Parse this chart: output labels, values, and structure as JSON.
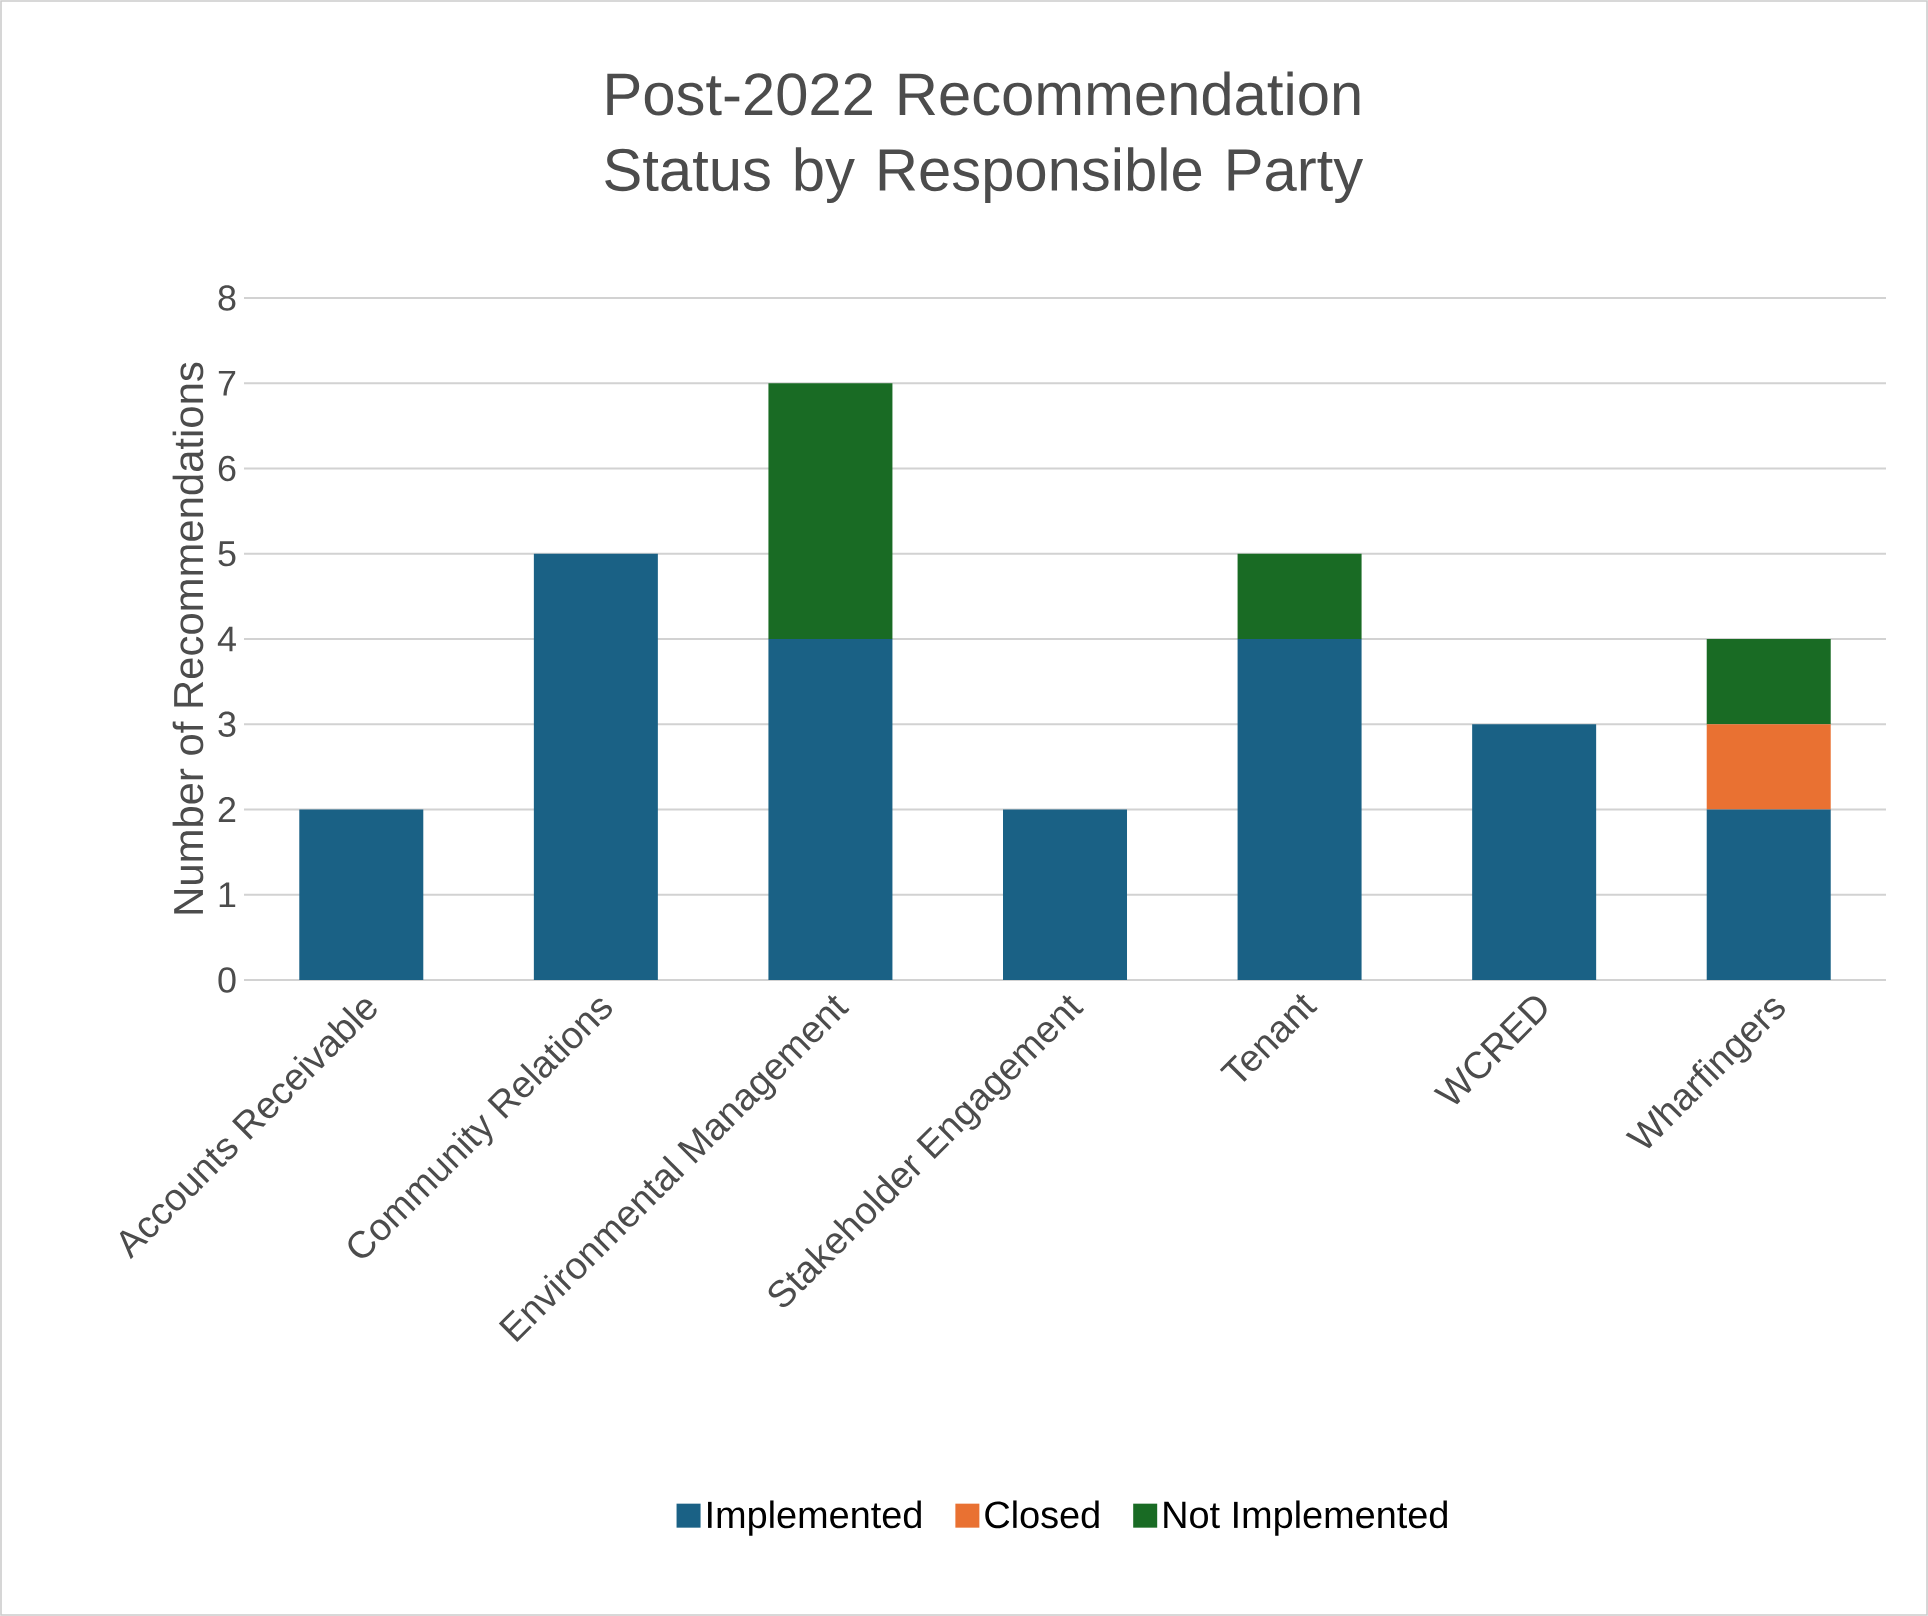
{
  "chart_data": {
    "type": "bar",
    "stacked": true,
    "title": "Post-2022 Recommendation Status by Responsible Party",
    "ylabel": "Number of Recommendations",
    "categories": [
      "Accounts Receivable",
      "Community Relations",
      "Environmental Management",
      "Stakeholder Engagement",
      "Tenant",
      "WCRED",
      "Wharfingers"
    ],
    "series": [
      {
        "name": "Implemented",
        "color": "#1a6185",
        "values": [
          2,
          5,
          4,
          2,
          4,
          3,
          2
        ]
      },
      {
        "name": "Closed",
        "color": "#e97132",
        "values": [
          null,
          null,
          null,
          null,
          null,
          null,
          1
        ]
      },
      {
        "name": "Not Implemented",
        "color": "#196b24",
        "values": [
          null,
          null,
          3,
          null,
          1,
          null,
          1
        ]
      }
    ],
    "ylim": [
      0,
      8
    ],
    "yticks": [
      0,
      1,
      2,
      3,
      4,
      5,
      6,
      7,
      8
    ],
    "grid": "y",
    "legend": "bottom"
  }
}
